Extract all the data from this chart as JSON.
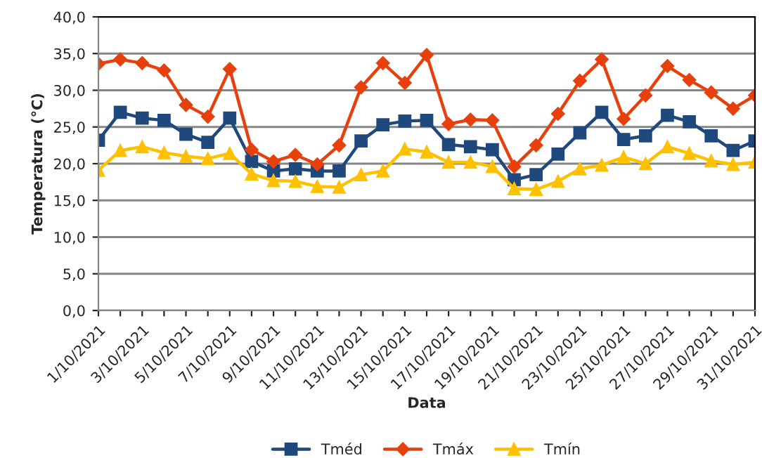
{
  "chart_data": {
    "type": "line",
    "xlabel": "Data",
    "ylabel": "Temperatura (°C)",
    "categories": [
      "1/10/2021",
      null,
      "3/10/2021",
      null,
      "5/10/2021",
      null,
      "7/10/2021",
      null,
      "9/10/2021",
      null,
      "11/10/2021",
      null,
      "13/10/2021",
      null,
      "15/10/2021",
      null,
      "17/10/2021",
      null,
      "19/10/2021",
      null,
      "21/10/2021",
      null,
      "23/10/2021",
      null,
      "25/10/2021",
      null,
      "27/10/2021",
      null,
      "29/10/2021",
      null,
      "31/10/2021"
    ],
    "series": [
      {
        "name": "Tméd",
        "color": "#1f497d",
        "marker": "square",
        "values": [
          23.2,
          27.0,
          26.2,
          25.9,
          24.0,
          22.9,
          26.2,
          20.3,
          19.0,
          19.3,
          19.0,
          19.0,
          23.1,
          25.3,
          25.8,
          25.9,
          22.6,
          22.3,
          21.9,
          17.8,
          18.5,
          21.3,
          24.2,
          27.0,
          23.3,
          23.8,
          26.6,
          25.7,
          23.8,
          21.8,
          23.1
        ]
      },
      {
        "name": "Tmáx",
        "color": "#e8400c",
        "marker": "diamond",
        "values": [
          33.6,
          34.2,
          33.7,
          32.7,
          28.0,
          26.4,
          32.9,
          21.9,
          20.3,
          21.2,
          19.9,
          22.5,
          30.4,
          33.7,
          31.0,
          34.8,
          25.4,
          26.0,
          25.9,
          19.6,
          22.5,
          26.8,
          31.3,
          34.2,
          26.1,
          29.3,
          33.3,
          31.4,
          29.7,
          27.5,
          29.3
        ]
      },
      {
        "name": "Tmín",
        "color": "#ffc000",
        "marker": "triangle",
        "values": [
          19.1,
          21.8,
          22.3,
          21.5,
          21.0,
          20.7,
          21.4,
          18.6,
          17.7,
          17.6,
          16.9,
          16.8,
          18.5,
          19.0,
          22.0,
          21.6,
          20.2,
          20.2,
          19.6,
          16.6,
          16.5,
          17.6,
          19.3,
          19.8,
          20.9,
          20.0,
          22.3,
          21.4,
          20.4,
          19.9,
          20.2
        ]
      }
    ],
    "ylim": [
      0,
      40
    ],
    "yticks": [
      {
        "value": 0,
        "label": "0,0"
      },
      {
        "value": 5,
        "label": "5,0"
      },
      {
        "value": 10,
        "label": "10,0"
      },
      {
        "value": 15,
        "label": "15,0"
      },
      {
        "value": 20,
        "label": "20,0"
      },
      {
        "value": 25,
        "label": "25,0"
      },
      {
        "value": 30,
        "label": "30,0"
      },
      {
        "value": 35,
        "label": "35,0"
      },
      {
        "value": 40,
        "label": "40,0"
      }
    ],
    "grid": "y",
    "legend": "bottom",
    "line_style": "solid"
  }
}
